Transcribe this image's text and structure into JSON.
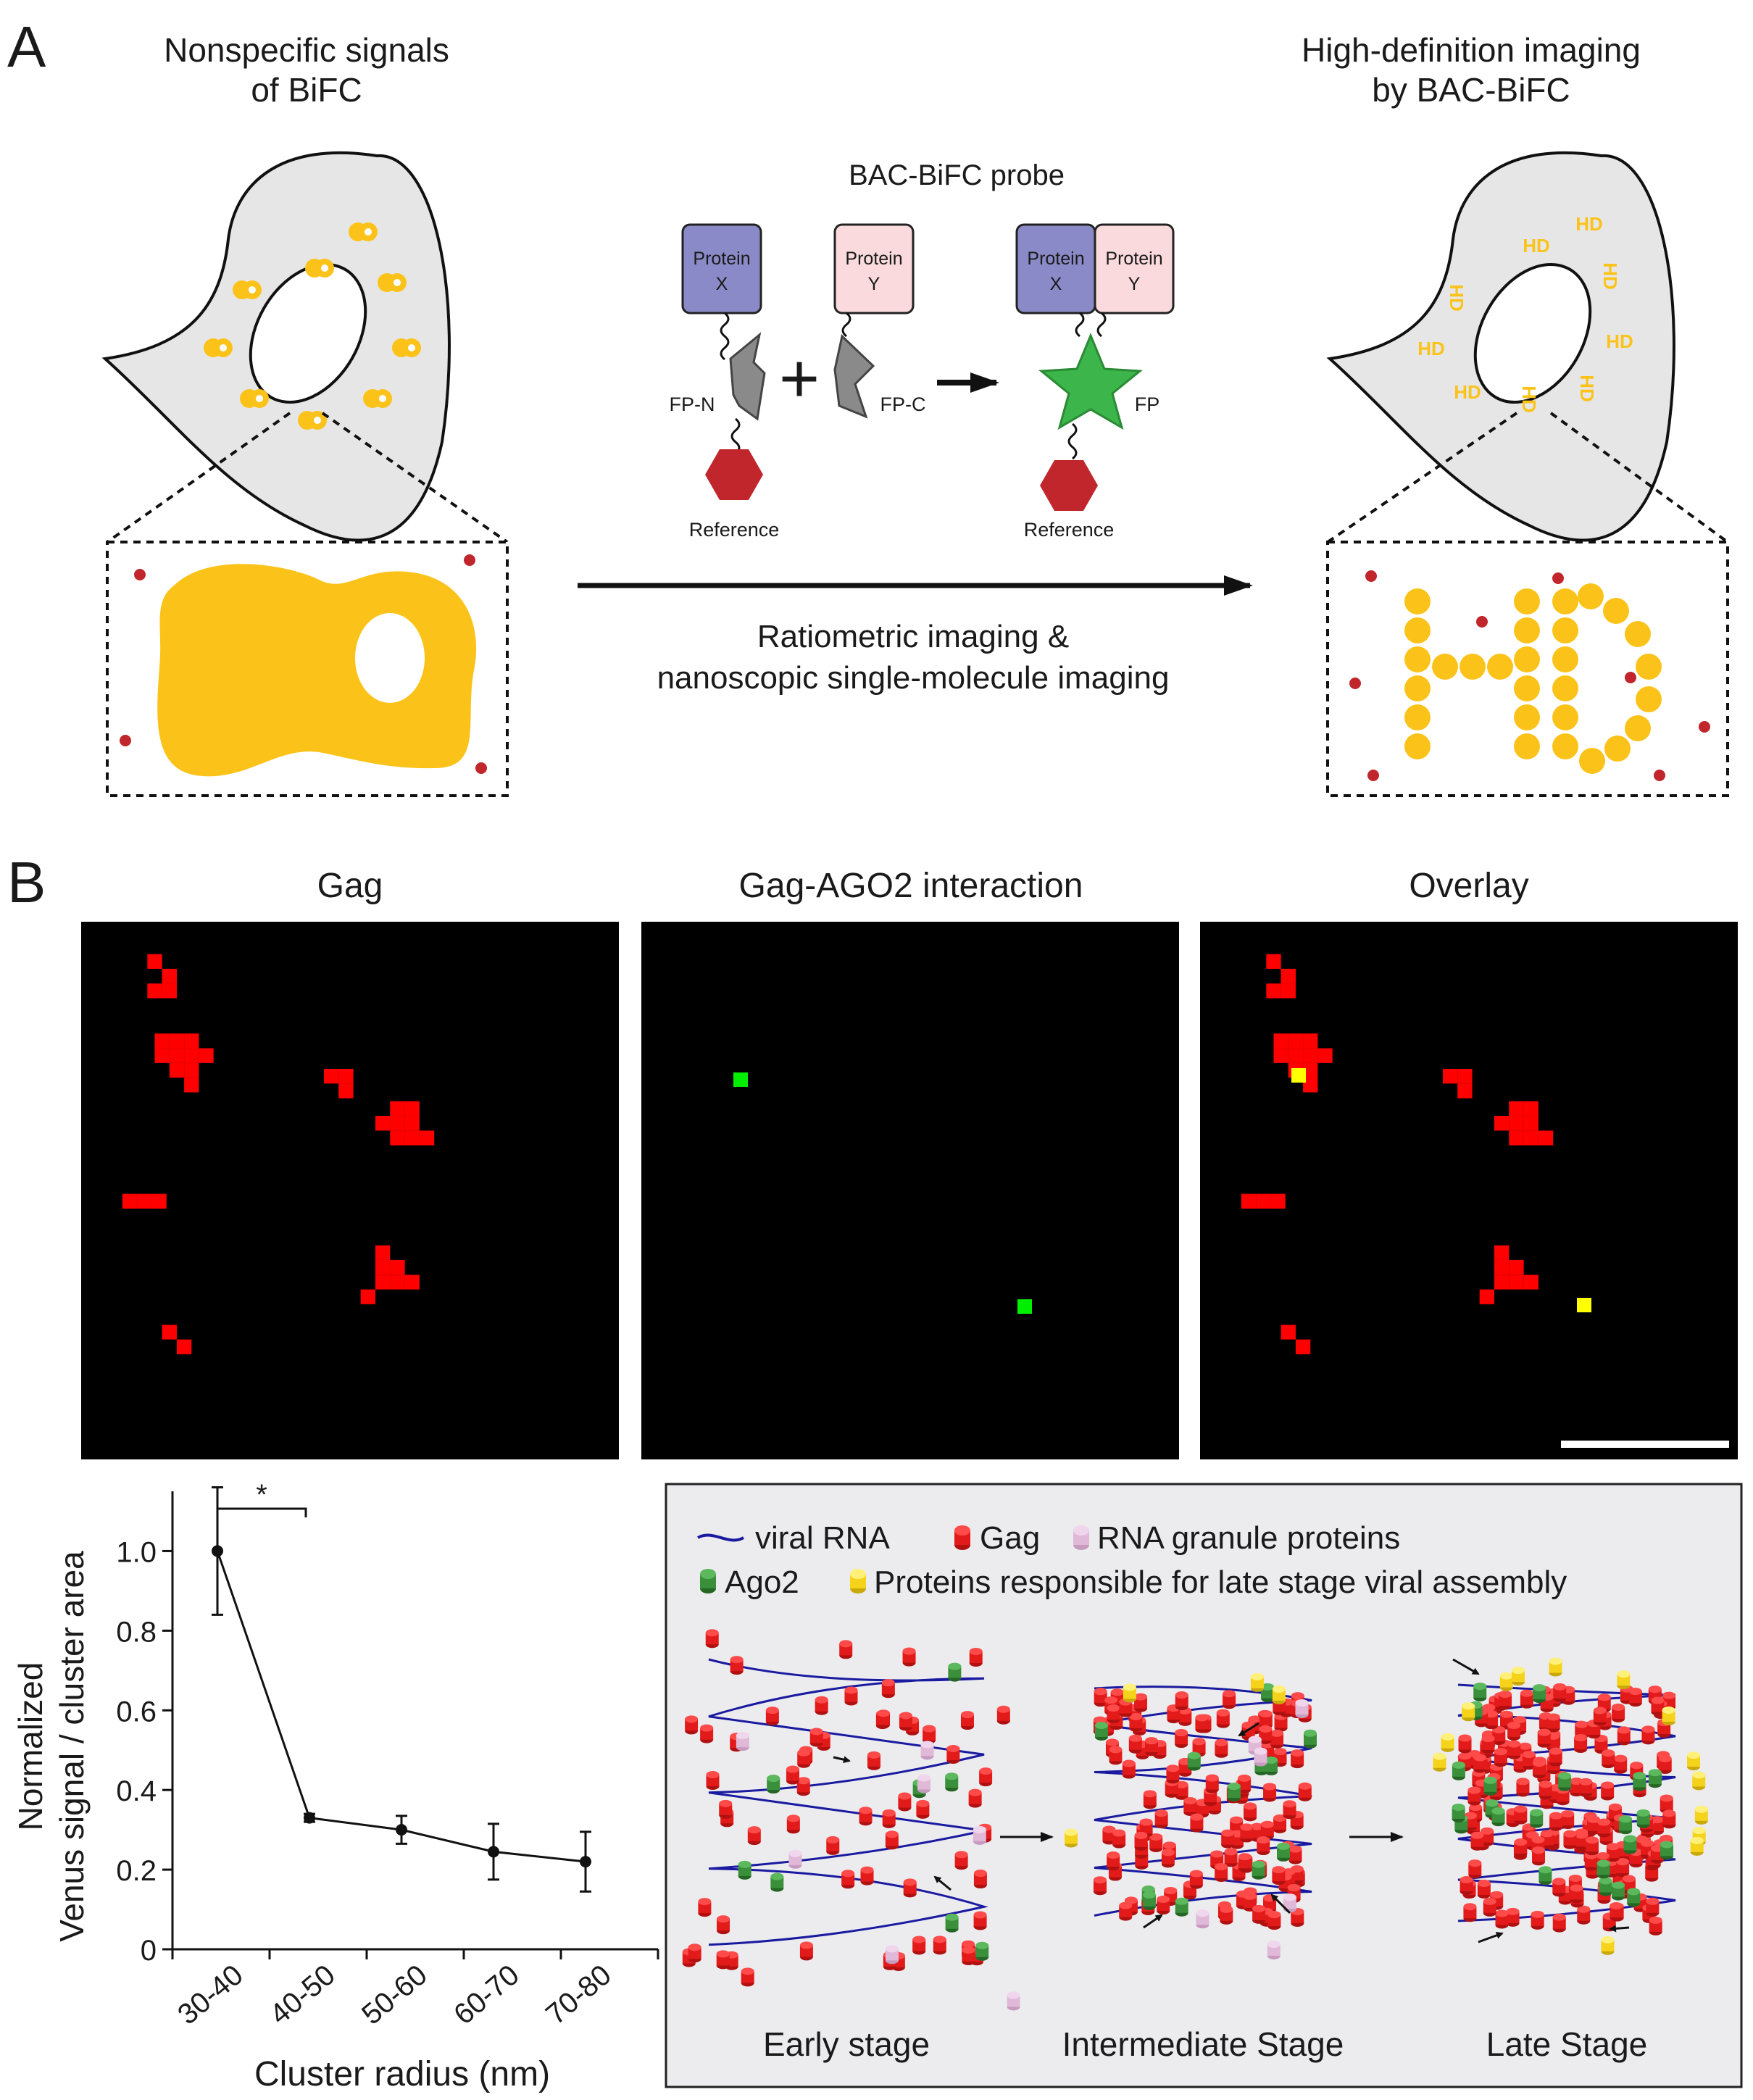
{
  "panel_a": {
    "letter": "A",
    "left_title": [
      "Nonspecific signals",
      "of BiFC"
    ],
    "right_title": [
      "High-definition imaging",
      "by BAC-BiFC"
    ],
    "probe_title": "BAC-BiFC probe",
    "protein_x": [
      "Protein",
      "X"
    ],
    "protein_y": [
      "Protein",
      "Y"
    ],
    "fp_n": "FP-N",
    "fp_c": "FP-C",
    "fp": "FP",
    "reference": "Reference",
    "plus": "+",
    "arrow_caption": [
      "Ratiometric imaging &",
      "nanoscopic single-molecule imaging"
    ],
    "hd_text": "HD"
  },
  "panel_b": {
    "letter": "B",
    "image_titles": [
      "Gag",
      "Gag-AGO2 interaction",
      "Overlay"
    ],
    "colors": {
      "gag": "#ff0000",
      "interaction": "#00ee00",
      "overlap": "#ffff00"
    }
  },
  "chart_data": {
    "type": "line",
    "categories": [
      "30-40",
      "40-50",
      "50-60",
      "60-70",
      "70-80"
    ],
    "values": [
      1.0,
      0.33,
      0.3,
      0.245,
      0.22
    ],
    "errors": [
      0.16,
      0.01,
      0.035,
      0.07,
      0.075
    ],
    "ylabel": [
      "Normalized",
      "Venus signal / cluster area"
    ],
    "xlabel": "Cluster radius (nm)",
    "ylim": [
      0,
      1.15
    ],
    "yticks": [
      0,
      0.2,
      0.4,
      0.6,
      0.8,
      1.0
    ],
    "ytick_labels": [
      "0",
      "0.2",
      "0.4",
      "0.6",
      "0.8",
      "1.0"
    ],
    "significance": {
      "between": [
        "30-40",
        "40-50"
      ],
      "label": "*"
    }
  },
  "model": {
    "legend": {
      "viral_rna": "viral RNA",
      "gag": "Gag",
      "granule": "RNA granule proteins",
      "ago2": "Ago2",
      "late": "Proteins responsible for late stage viral assembly"
    },
    "stages": [
      "Early stage",
      "Intermediate Stage",
      "Late Stage"
    ],
    "colors": {
      "rna": "#1a1aa0",
      "gag": "#e31a1a",
      "ago2": "#3a8f3a",
      "granule": "#e0b8d8",
      "late": "#f5d31a"
    }
  }
}
